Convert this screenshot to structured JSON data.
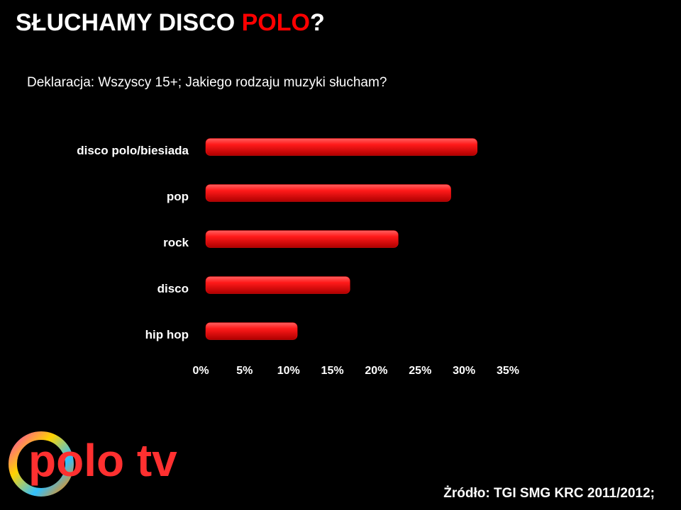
{
  "chart_data": {
    "type": "bar",
    "orientation": "horizontal",
    "title": [
      "SŁUCHAMY DISCO ",
      "POLO",
      "?"
    ],
    "title_color": "#ffffff",
    "title_highlight_color": "#ff0000",
    "subtitle": "Deklaracja: Wszyscy 15+; Jakiego rodzaju muzyki słucham?",
    "categories": [
      "disco polo/biesiada",
      "pop",
      "rock",
      "disco",
      "hip hop"
    ],
    "values": [
      31.5,
      28.5,
      22.5,
      17,
      11
    ],
    "color": "#ff1010",
    "xlim": [
      0,
      35
    ],
    "xticks": [
      {
        "value": 0,
        "label": "0%"
      },
      {
        "value": 5,
        "label": "5%"
      },
      {
        "value": 10,
        "label": "10%"
      },
      {
        "value": 15,
        "label": "15%"
      },
      {
        "value": 20,
        "label": "20%"
      },
      {
        "value": 25,
        "label": "25%"
      },
      {
        "value": 30,
        "label": "30%"
      },
      {
        "value": 35,
        "label": "35%"
      }
    ],
    "grid": false,
    "source": "Żródło:  TGI SMG KRC 2011/2012;",
    "logo": "polo tv"
  }
}
